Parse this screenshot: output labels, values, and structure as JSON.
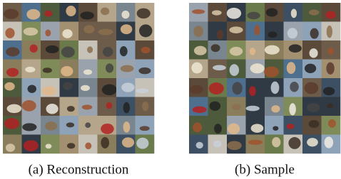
{
  "figure": {
    "panels": [
      {
        "caption": "(a) Reconstruction"
      },
      {
        "caption": "(b) Sample"
      }
    ]
  }
}
